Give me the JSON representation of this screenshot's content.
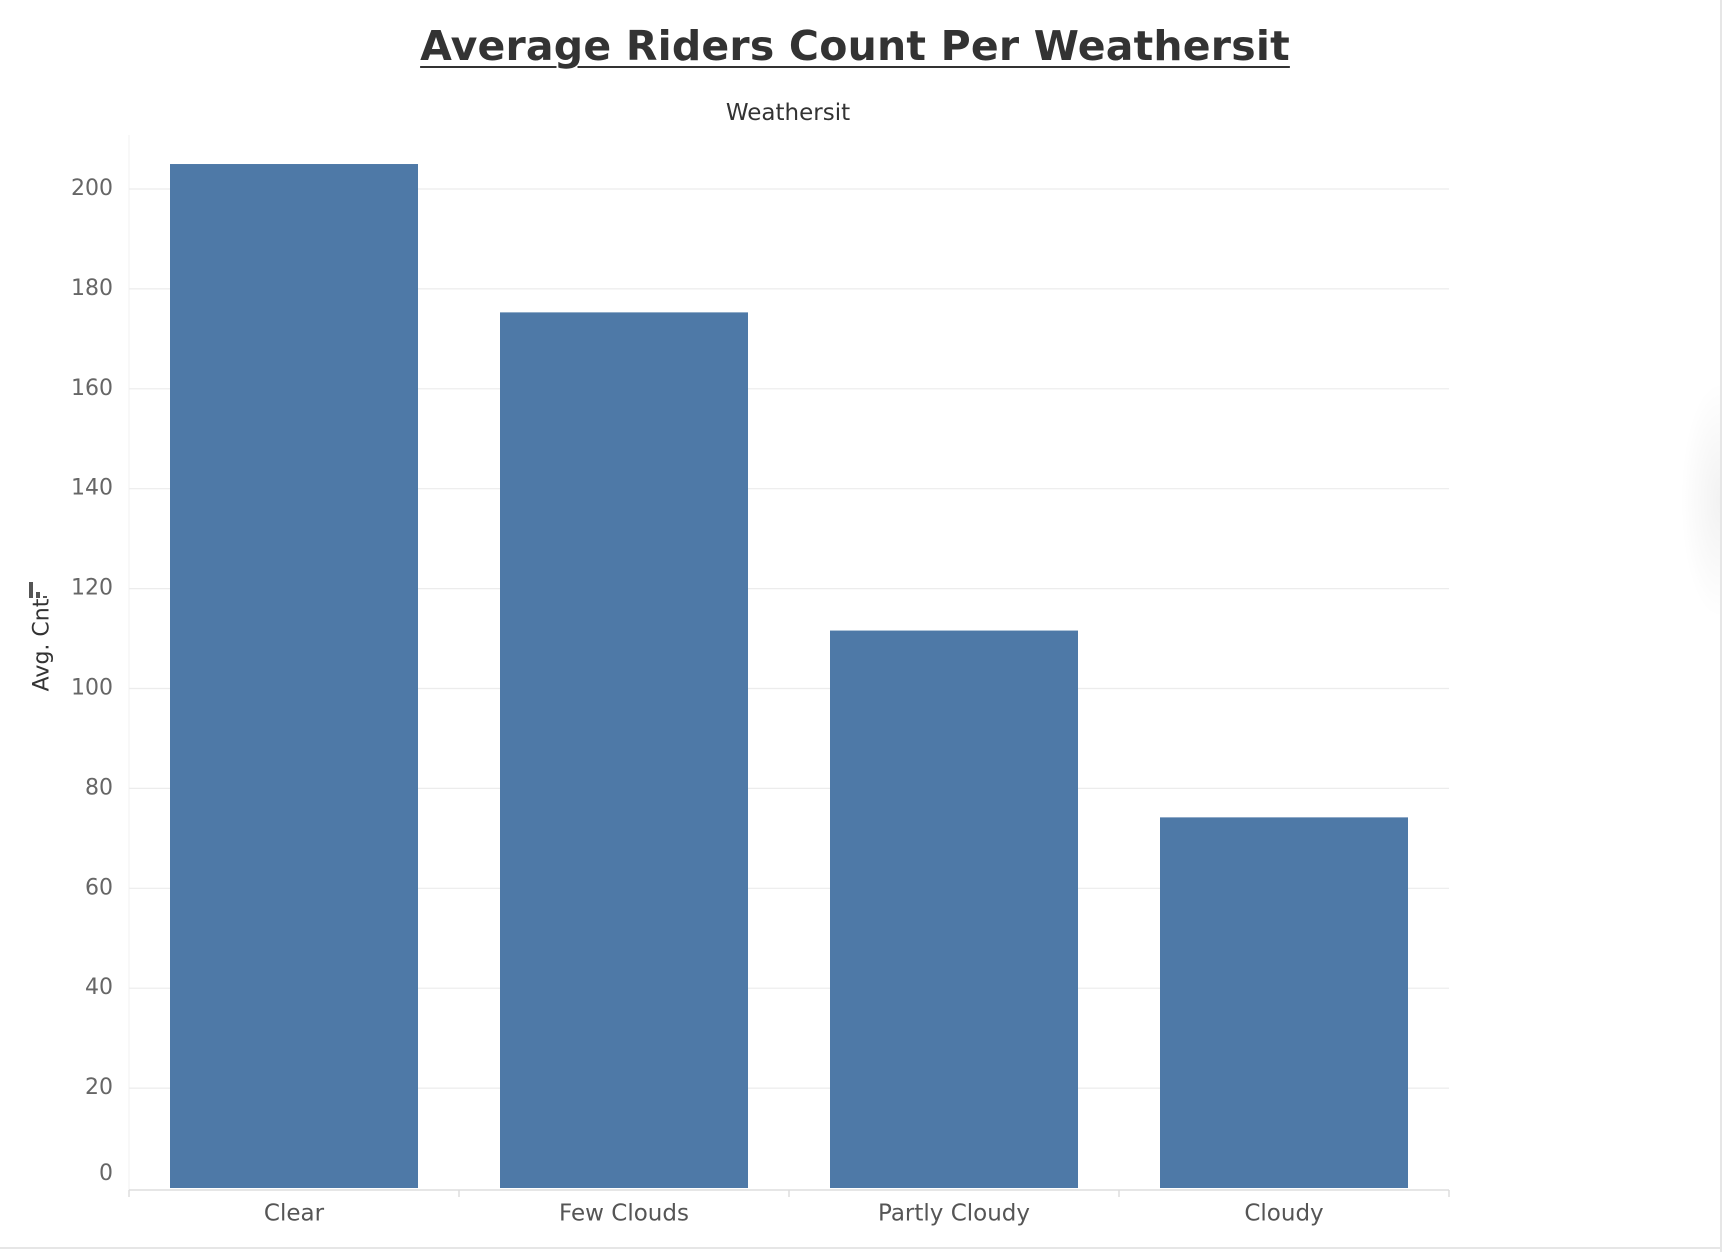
{
  "header": {
    "title": "Average Riders Count Per Weathersit",
    "column_header": "Weathersit"
  },
  "icons": {
    "sort": "sort-descending-icon"
  },
  "colors": {
    "bar": "#4e79a7",
    "grid": "#ececec",
    "axis": "#dddddd",
    "tick_text": "#666666",
    "title_text": "#333333"
  },
  "chart_data": {
    "type": "bar",
    "title": "Average Riders Count Per Weathersit",
    "xlabel": "Weathersit",
    "ylabel": "Avg. Cnt",
    "categories": [
      "Clear",
      "Few Clouds",
      "Partly Cloudy",
      "Cloudy"
    ],
    "values": [
      205,
      175.3,
      111.6,
      74.2
    ],
    "ylim": [
      0,
      210
    ],
    "yticks": [
      0,
      20,
      40,
      60,
      80,
      100,
      120,
      140,
      160,
      180,
      200
    ],
    "ytick_labels": [
      "0",
      "20",
      "40",
      "60",
      "80",
      "100",
      "120",
      "140",
      "160",
      "180",
      "200"
    ],
    "grid": true,
    "legend": "none"
  }
}
